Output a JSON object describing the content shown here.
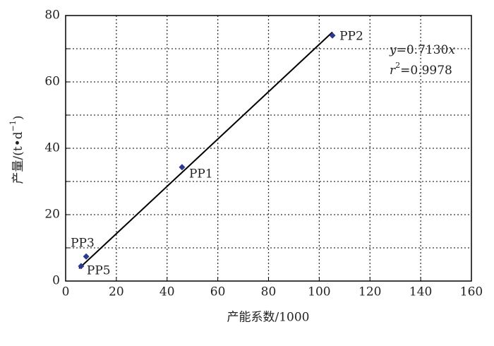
{
  "chart_data": {
    "type": "scatter",
    "x_label": "产能系数/1000",
    "y_label_parts": [
      "产量/(t•d",
      "−1",
      ")"
    ],
    "xlim": [
      0,
      160
    ],
    "xticks": [
      0,
      20,
      40,
      60,
      80,
      100,
      120,
      140,
      160
    ],
    "ylim": [
      0,
      80
    ],
    "yticks": [
      0,
      20,
      40,
      60,
      80
    ],
    "yminor_ticks": [
      10,
      30,
      50,
      70
    ],
    "grid": true,
    "series": [
      {
        "color": "#2b3990",
        "labels": [
          "PP2",
          "PP1",
          "PP3",
          "PP5"
        ],
        "x": [
          105.2,
          45.9,
          8.1,
          6.1
        ],
        "values": [
          74.0,
          34.3,
          7.4,
          4.5
        ]
      }
    ],
    "trend": {
      "color": "#000000",
      "x": [
        5.3,
        105.2
      ],
      "values": [
        3.8,
        75.0
      ]
    },
    "equation_parts": [
      "y",
      "=0.7130",
      "x"
    ],
    "r2_parts": [
      "r",
      "2",
      "=0.9978"
    ]
  }
}
